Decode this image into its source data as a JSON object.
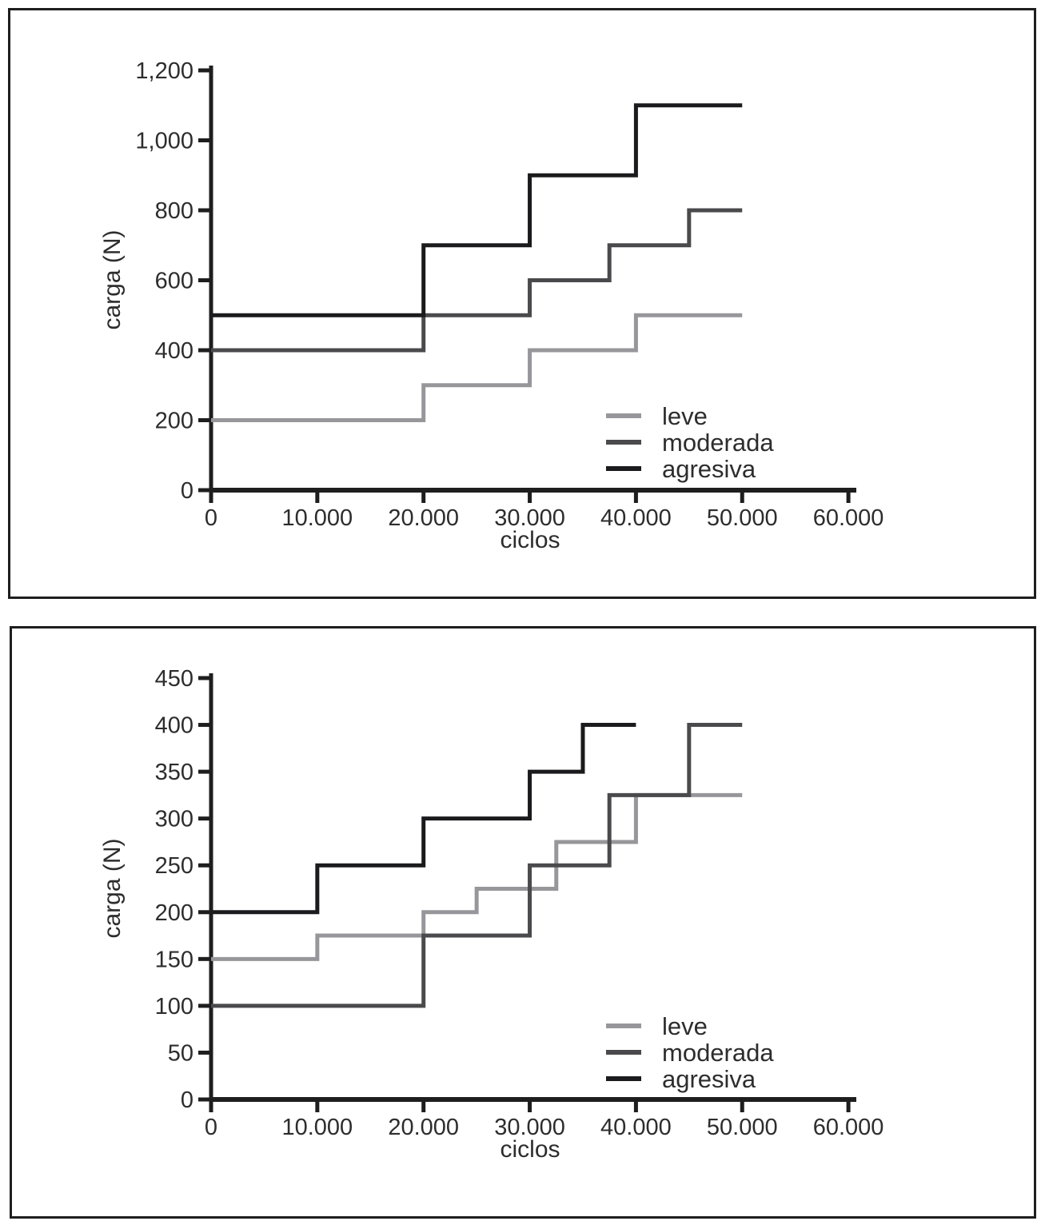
{
  "page": {
    "background": "#ffffff"
  },
  "colors": {
    "leve": "#97979b",
    "moderada": "#4a4a4c",
    "agresiva": "#1b1b1d",
    "axis": "#1e1e1e",
    "text": "#2d2d2d",
    "frame": "#1e1e1e"
  },
  "chart_data": [
    {
      "type": "line",
      "subtype": "step",
      "title": "",
      "xlabel": "ciclos",
      "ylabel": "carga (N)",
      "xlim": [
        0,
        60000
      ],
      "ylim": [
        0,
        1200
      ],
      "grid": false,
      "x_ticks": {
        "values": [
          0,
          10000,
          20000,
          30000,
          40000,
          50000,
          60000
        ],
        "labels": [
          "0",
          "10.000",
          "20.000",
          "30.000",
          "40.000",
          "50.000",
          "60.000"
        ]
      },
      "y_ticks": {
        "values": [
          0,
          200,
          400,
          600,
          800,
          1000,
          1200
        ],
        "labels": [
          "0",
          "200",
          "400",
          "600",
          "800",
          "1,000",
          "1,200"
        ]
      },
      "legend": {
        "position": "inside-bottom-right",
        "entries": [
          "leve",
          "moderada",
          "agresiva"
        ]
      },
      "series": [
        {
          "name": "leve",
          "color": "leve",
          "steps": [
            [
              0,
              200
            ],
            [
              20000,
              300
            ],
            [
              30000,
              400
            ],
            [
              40000,
              500
            ]
          ],
          "x_end": 50000
        },
        {
          "name": "moderada",
          "color": "moderada",
          "steps": [
            [
              0,
              400
            ],
            [
              20000,
              500
            ],
            [
              30000,
              600
            ],
            [
              37500,
              700
            ],
            [
              45000,
              800
            ]
          ],
          "x_end": 50000
        },
        {
          "name": "agresiva",
          "color": "agresiva",
          "steps": [
            [
              0,
              500
            ],
            [
              20000,
              700
            ],
            [
              30000,
              900
            ],
            [
              40000,
              1100
            ]
          ],
          "x_end": 50000
        }
      ]
    },
    {
      "type": "line",
      "subtype": "step",
      "title": "",
      "xlabel": "ciclos",
      "ylabel": "carga (N)",
      "xlim": [
        0,
        60000
      ],
      "ylim": [
        0,
        450
      ],
      "grid": false,
      "x_ticks": {
        "values": [
          0,
          10000,
          20000,
          30000,
          40000,
          50000,
          60000
        ],
        "labels": [
          "0",
          "10.000",
          "20.000",
          "30.000",
          "40.000",
          "50.000",
          "60.000"
        ]
      },
      "y_ticks": {
        "values": [
          0,
          50,
          100,
          150,
          200,
          250,
          300,
          350,
          400,
          450
        ],
        "labels": [
          "0",
          "50",
          "100",
          "150",
          "200",
          "250",
          "300",
          "350",
          "400",
          "450"
        ]
      },
      "legend": {
        "position": "inside-bottom-right",
        "entries": [
          "leve",
          "moderada",
          "agresiva"
        ]
      },
      "series": [
        {
          "name": "leve",
          "color": "leve",
          "steps": [
            [
              0,
              150
            ],
            [
              10000,
              175
            ],
            [
              20000,
              200
            ],
            [
              25000,
              225
            ],
            [
              32500,
              275
            ],
            [
              40000,
              325
            ]
          ],
          "x_end": 50000
        },
        {
          "name": "moderada",
          "color": "moderada",
          "steps": [
            [
              0,
              100
            ],
            [
              20000,
              175
            ],
            [
              30000,
              250
            ],
            [
              37500,
              325
            ],
            [
              45000,
              400
            ]
          ],
          "x_end": 50000
        },
        {
          "name": "agresiva",
          "color": "agresiva",
          "steps": [
            [
              0,
              200
            ],
            [
              10000,
              250
            ],
            [
              20000,
              300
            ],
            [
              30000,
              350
            ],
            [
              35000,
              400
            ]
          ],
          "x_end": 40000
        }
      ]
    }
  ]
}
